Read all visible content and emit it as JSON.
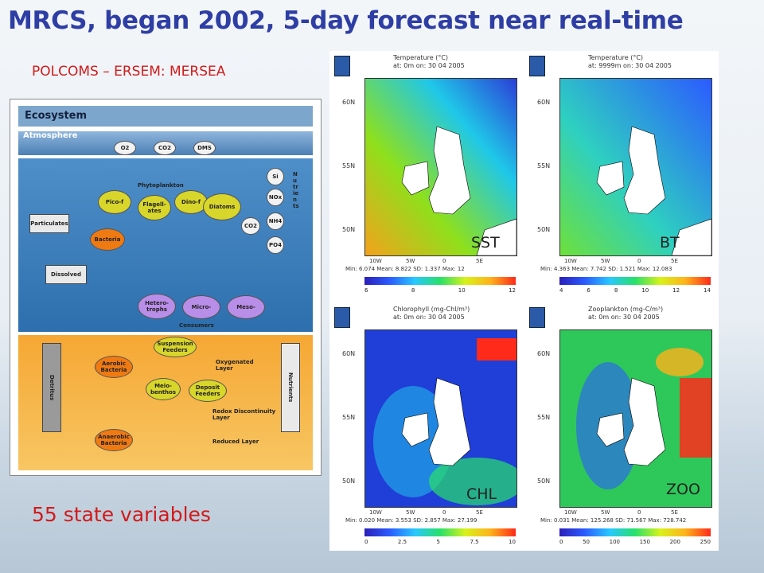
{
  "slide": {
    "title": "MRCS, began 2002, 5-day forecast near real-time",
    "subtitle": "POLCOMS – ERSEM: MERSEA",
    "state_vars": "55 state variables"
  },
  "diagram": {
    "header": "Ecosystem",
    "atmosphere": "Atmosphere",
    "gases": [
      "O2",
      "CO2",
      "DMS"
    ],
    "phytoplankton_label": "Phytoplankton",
    "phyto": [
      "Pico-f",
      "Flagell-ates",
      "Dino-f",
      "Diatoms"
    ],
    "nutrients_pelagic": [
      "Si",
      "NOx",
      "NH4",
      "PO4",
      "CO2"
    ],
    "nutrients_vertical": "Nutrients",
    "particulates": "Particulates",
    "dissolved": "Dissolved",
    "bacteria": "Bacteria",
    "consumers": [
      "Hetero-trophs",
      "Micro-",
      "Meso-"
    ],
    "consumers_label": "Consumers",
    "suspension_feeders": "Suspension Feeders",
    "aerobic": "Aerobic Bacteria",
    "meiobenthos": "Meio-benthos",
    "deposit_feeders": "Deposit Feeders",
    "anaerobic": "Anaerobic Bacteria",
    "oxygenated": "Oxygenated Layer",
    "redox": "Redox Discontinuity Layer",
    "reduced": "Reduced Layer",
    "detritus": "Detritus",
    "nutrients_benthic": "Nutrients"
  },
  "maps": [
    {
      "title": "Temperature (°C)",
      "sub": "at: 0m on: 30 04 2005",
      "stats": "Min: 6.074 Mean: 8.822 SD: 1.337 Max: 12",
      "code": "SST",
      "ticks": [
        "6",
        "8",
        "10",
        "12"
      ]
    },
    {
      "title": "Temperature (°C)",
      "sub": "at: 9999m on: 30 04 2005",
      "stats": "Min: 4.363 Mean: 7.742 SD: 1.521 Max: 12.083",
      "code": "BT",
      "ticks": [
        "4",
        "6",
        "8",
        "10",
        "12",
        "14"
      ]
    },
    {
      "title": "Chlorophyll (mg-Chl/m³)",
      "sub": "at: 0m on: 30 04 2005",
      "stats": "Min: 0.020 Mean: 3.553 SD: 2.857 Max: 27.199",
      "code": "CHL",
      "ticks": [
        "0",
        "2.5",
        "5",
        "7.5",
        "10"
      ]
    },
    {
      "title": "Zooplankton (mg-C/m³)",
      "sub": "at: 0m on: 30 04 2005",
      "stats": "Min: 0.031 Mean: 125.268 SD: 71.567 Max: 728.742",
      "code": "ZOO",
      "ticks": [
        "0",
        "50",
        "100",
        "150",
        "200",
        "250"
      ]
    }
  ],
  "axes": {
    "lat": [
      "60N",
      "55N",
      "50N"
    ],
    "lon": [
      "10W",
      "5W",
      "0",
      "5E"
    ]
  },
  "colors": {
    "title": "#2e3ea4",
    "accent_red": "#d11a1a"
  }
}
